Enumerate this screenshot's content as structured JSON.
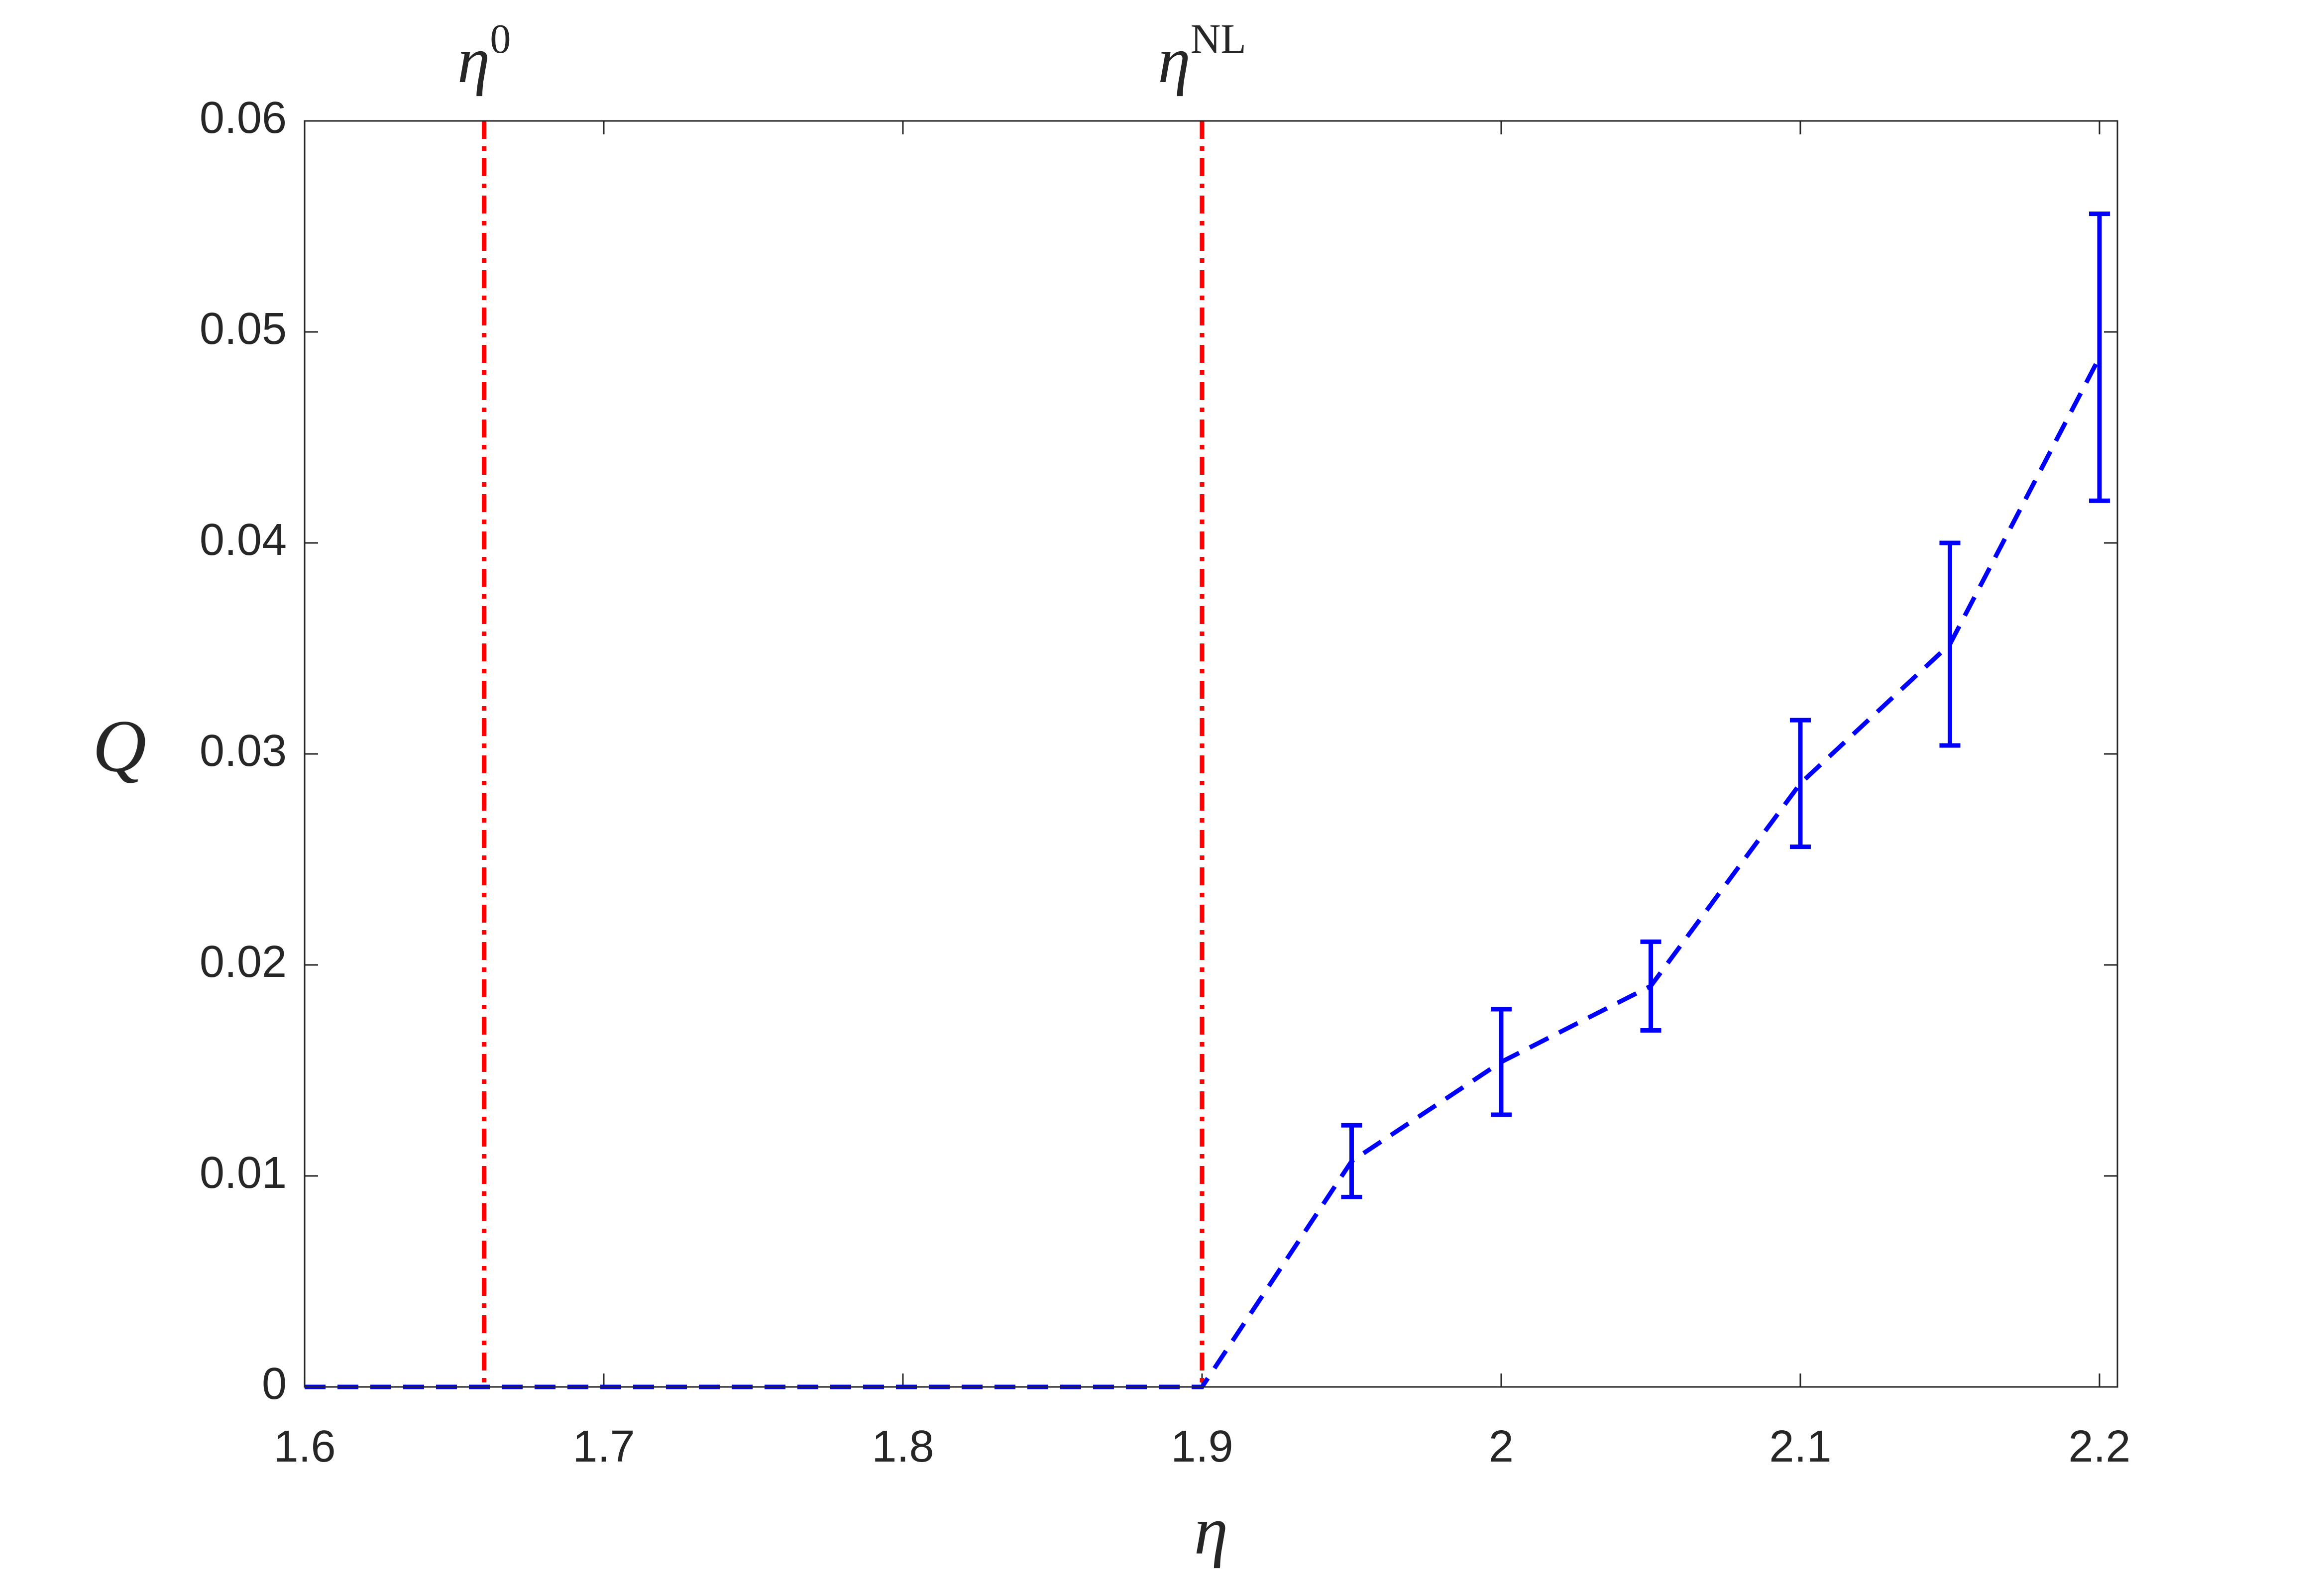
{
  "chart_data": {
    "type": "errorbar_line",
    "x_label": "η",
    "y_label": "Q",
    "xlim": [
      1.6,
      2.206
    ],
    "ylim": [
      0,
      0.06
    ],
    "xticks": [
      1.6,
      1.7,
      1.8,
      1.9,
      2,
      2.1,
      2.2
    ],
    "yticks": [
      0,
      0.01,
      0.02,
      0.03,
      0.04,
      0.05,
      0.06
    ],
    "series": [
      {
        "color": "#0000ff",
        "x": [
          1.6,
          1.9,
          1.95,
          2,
          2.05,
          2.1,
          2.15,
          2.2
        ],
        "values": [
          0,
          0,
          0.0107,
          0.0154,
          0.019,
          0.0286,
          0.0352,
          0.0488
        ],
        "errors": [
          null,
          null,
          0.0017,
          0.0025,
          0.0021,
          0.003,
          0.0048,
          0.0068
        ]
      }
    ],
    "vlines": [
      {
        "x": 1.66,
        "label": "η",
        "sup": "0",
        "color": "#ff0000"
      },
      {
        "x": 1.9,
        "label": "η",
        "sup": "NL",
        "color": "#ff0000"
      }
    ]
  }
}
